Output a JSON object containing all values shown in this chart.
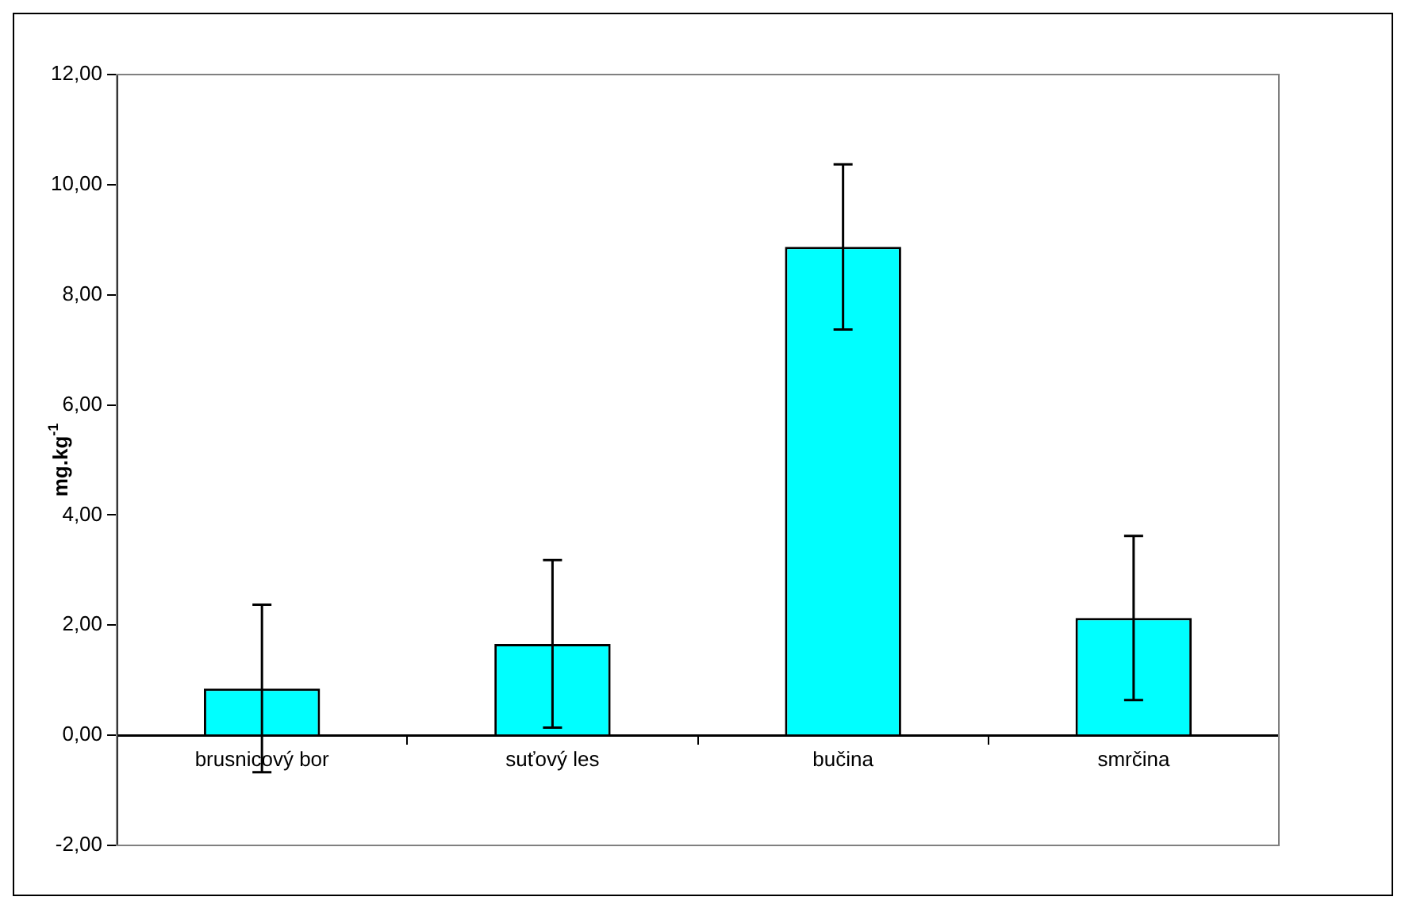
{
  "chart_data": {
    "type": "bar",
    "ylabel": "mg.kg$^{-1}$",
    "categories": [
      "brusnicový bor",
      "suťový les",
      "bučina",
      "smrčina"
    ],
    "values": [
      0.85,
      1.66,
      8.87,
      2.13
    ],
    "errors": [
      1.52,
      1.52,
      1.5,
      1.49
    ],
    "color": "#00ffff",
    "ylim": [
      -2,
      12
    ],
    "yticks": [
      {
        "value": -2,
        "label": "-2,00"
      },
      {
        "value": 0,
        "label": "0,00"
      },
      {
        "value": 2,
        "label": "2,00"
      },
      {
        "value": 4,
        "label": "4,00"
      },
      {
        "value": 6,
        "label": "6,00"
      },
      {
        "value": 8,
        "label": "8,00"
      },
      {
        "value": 10,
        "label": "10,00"
      },
      {
        "value": 12,
        "label": "12,00"
      }
    ],
    "grid": false,
    "legend": false
  }
}
